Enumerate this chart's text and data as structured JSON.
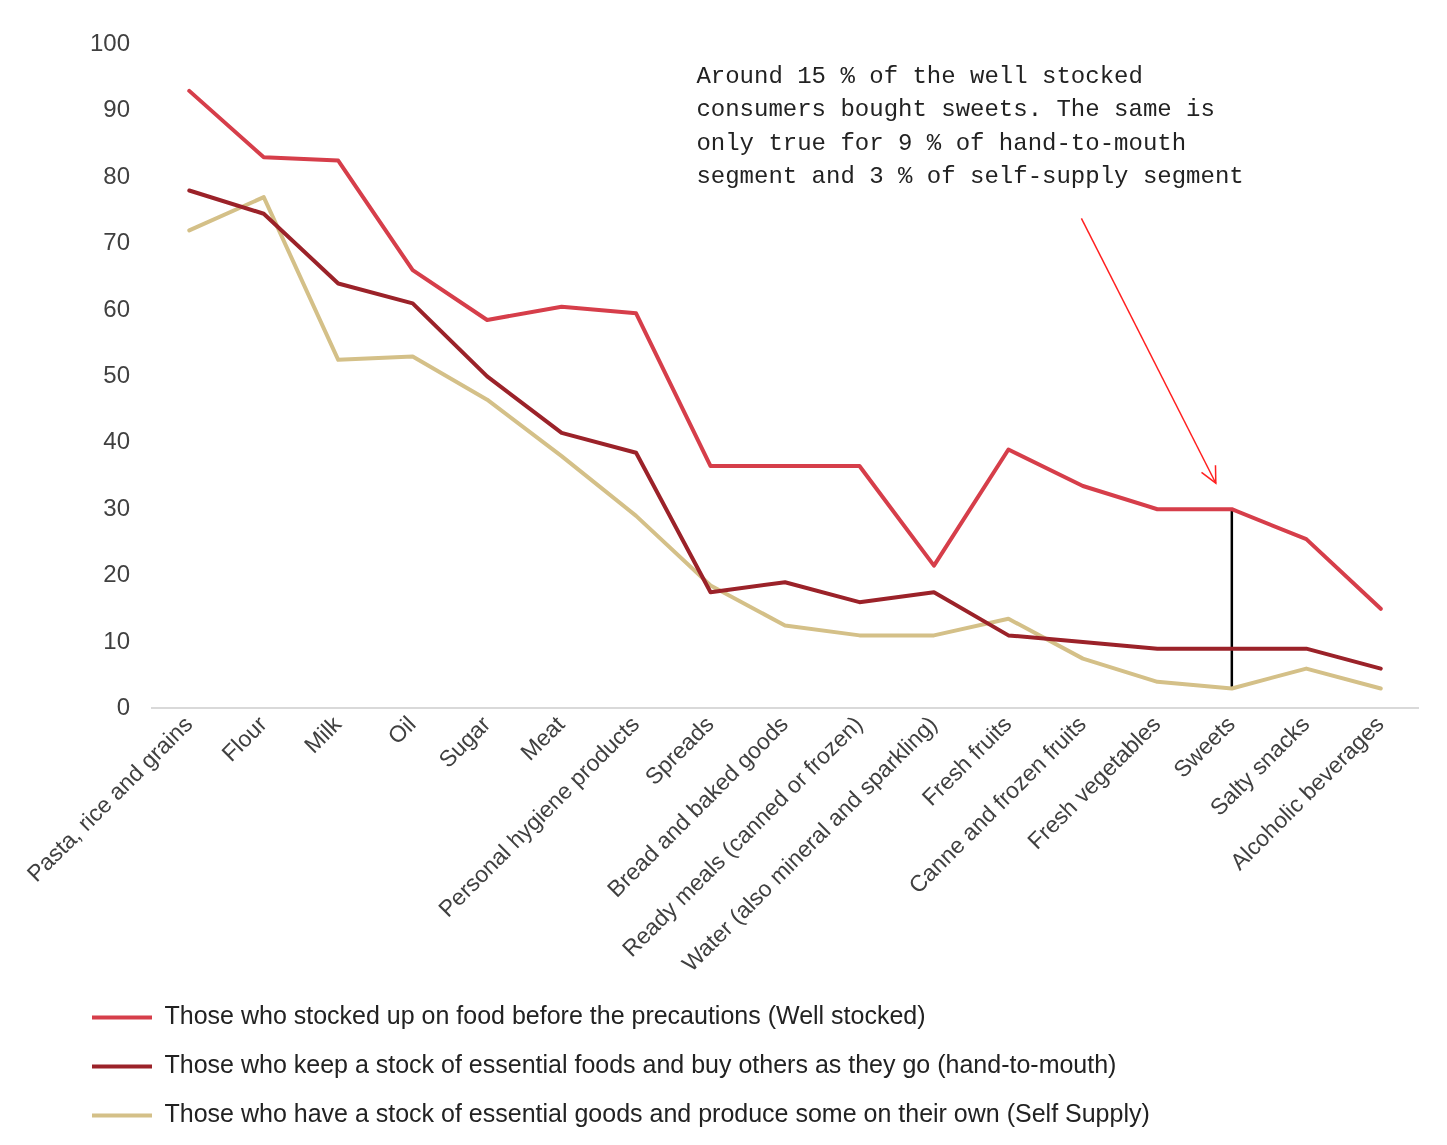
{
  "chart_data": {
    "type": "line",
    "categories": [
      "Pasta, rice and grains",
      "Flour",
      "Milk",
      "Oil",
      "Sugar",
      "Meat",
      "Personal hygiene products",
      "Spreads",
      "Bread and baked goods",
      "Ready meals (canned or frozen)",
      "Water (also mineral and sparkling)",
      "Fresh fruits",
      "Canne and frozen fruits",
      "Fresh vegetables",
      "Sweets",
      "Salty snacks",
      "Alcoholic beverages"
    ],
    "series": [
      {
        "name": "Those who stocked up on food before the precautions (Well stocked)",
        "color": "#d63e4a",
        "values": [
          93,
          83,
          82.5,
          66,
          58.5,
          60.5,
          59.5,
          36.5,
          36.5,
          36.5,
          21.5,
          39,
          33.5,
          30,
          30,
          25.5,
          15
        ]
      },
      {
        "name": "Those who keep a stock of essential foods and buy others as they go (hand-to-mouth)",
        "color": "#9b2229",
        "values": [
          78,
          74.5,
          64,
          61,
          50,
          41.5,
          38.5,
          17.5,
          19,
          16,
          17.5,
          11,
          10,
          9,
          9,
          9,
          6
        ]
      },
      {
        "name": "Those who have a stock of essential goods and produce some on their own (Self Supply)",
        "color": "#d4c088",
        "values": [
          72,
          77,
          52.5,
          53,
          46.5,
          38,
          29,
          18.5,
          12.5,
          11,
          11,
          13.5,
          7.5,
          4,
          3,
          6,
          3
        ]
      },
      {
        "type": "line",
        "color": "#000000",
        "x": [
          "Sweets",
          "Sweets"
        ],
        "values": [
          30,
          3
        ]
      }
    ],
    "ylim": [
      0,
      100
    ],
    "yticks": [
      0,
      10,
      20,
      30,
      40,
      50,
      60,
      70,
      80,
      90,
      100
    ],
    "grid": false,
    "legend": "bottom",
    "marker": "none",
    "line_style": "solid",
    "annotations": [
      "Around 15 % of the well stocked\nconsumers bought sweets. The same is\nonly true for 9 % of hand-to-mouth\nsegment and 3 % of self-supply segment"
    ]
  }
}
